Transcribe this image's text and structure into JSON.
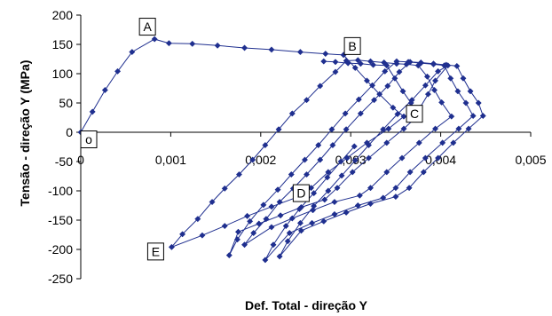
{
  "chart_data": {
    "type": "scatter",
    "title": "",
    "xlabel": "Def. Total - direção Y",
    "ylabel": "Tensão - direção Y (MPa)",
    "xlim": [
      0,
      0.005
    ],
    "ylim": [
      -250,
      200
    ],
    "x_ticks": [
      0,
      0.001,
      0.002,
      0.003,
      0.004,
      0.005
    ],
    "x_tick_labels": [
      "0",
      "0,001",
      "0,002",
      "0,003",
      "0,004",
      "0,005"
    ],
    "y_ticks": [
      200,
      150,
      100,
      50,
      0,
      -50,
      -100,
      -150,
      -200,
      -250
    ],
    "y_tick_labels": [
      "200",
      "150",
      "100",
      "50",
      "0",
      "-50",
      "-100",
      "-150",
      "-200",
      "-250"
    ],
    "grid": false,
    "legend": "none",
    "marker": "diamond",
    "series": [
      {
        "color": "#1f2f8f",
        "points": [
          [
            0,
            0
          ],
          [
            0.00013,
            35
          ],
          [
            0.00027,
            72
          ],
          [
            0.00041,
            104
          ],
          [
            0.00057,
            137
          ],
          [
            0.00082,
            159
          ],
          [
            0.00098,
            152
          ],
          [
            0.00124,
            151
          ],
          [
            0.00152,
            148
          ],
          [
            0.00182,
            144
          ],
          [
            0.00212,
            141
          ],
          [
            0.00244,
            137
          ],
          [
            0.00272,
            134
          ],
          [
            0.00292,
            132
          ],
          [
            0.00305,
            110
          ],
          [
            0.00318,
            88
          ],
          [
            0.00332,
            65
          ],
          [
            0.00347,
            42
          ],
          [
            0.00359,
            27
          ],
          [
            0.00342,
            6
          ],
          [
            0.00318,
            -18
          ],
          [
            0.00296,
            -44
          ],
          [
            0.00275,
            -68
          ],
          [
            0.00256,
            -95
          ],
          [
            0.00242,
            -110
          ],
          [
            0.00212,
            -127
          ],
          [
            0.00185,
            -143
          ],
          [
            0.0016,
            -160
          ],
          [
            0.00135,
            -176
          ],
          [
            0.00101,
            -196
          ],
          [
            0.00113,
            -174
          ],
          [
            0.0013,
            -148
          ],
          [
            0.00146,
            -119
          ],
          [
            0.0016,
            -96
          ],
          [
            0.00176,
            -72
          ],
          [
            0.00191,
            -47
          ],
          [
            0.00205,
            -22
          ],
          [
            0.0022,
            5
          ],
          [
            0.00235,
            32
          ],
          [
            0.00251,
            55
          ],
          [
            0.00266,
            79
          ],
          [
            0.00283,
            103
          ],
          [
            0.00295,
            122
          ],
          [
            0.00308,
            123
          ],
          [
            0.00322,
            121
          ],
          [
            0.00337,
            119
          ],
          [
            0.00351,
            117
          ],
          [
            0.00362,
            116
          ],
          [
            0.00375,
            114
          ],
          [
            0.00385,
            95
          ],
          [
            0.00393,
            72
          ],
          [
            0.00401,
            51
          ],
          [
            0.00412,
            27
          ],
          [
            0.00394,
            6
          ],
          [
            0.00376,
            -18
          ],
          [
            0.00357,
            -44
          ],
          [
            0.0034,
            -68
          ],
          [
            0.00322,
            -95
          ],
          [
            0.0031,
            -108
          ],
          [
            0.00282,
            -119
          ],
          [
            0.00258,
            -133
          ],
          [
            0.00235,
            -147
          ],
          [
            0.00212,
            -162
          ],
          [
            0.00182,
            -192
          ],
          [
            0.00192,
            -172
          ],
          [
            0.00206,
            -148
          ],
          [
            0.00221,
            -119
          ],
          [
            0.00236,
            -96
          ],
          [
            0.00251,
            -72
          ],
          [
            0.00266,
            -47
          ],
          [
            0.0028,
            -22
          ],
          [
            0.00295,
            5
          ],
          [
            0.00311,
            32
          ],
          [
            0.00326,
            55
          ],
          [
            0.00341,
            79
          ],
          [
            0.00354,
            103
          ],
          [
            0.00366,
            120
          ],
          [
            0.00378,
            119
          ],
          [
            0.00392,
            117
          ],
          [
            0.00406,
            115
          ],
          [
            0.00418,
            113
          ],
          [
            0.00425,
            92
          ],
          [
            0.00433,
            70
          ],
          [
            0.00442,
            50
          ],
          [
            0.00447,
            28
          ],
          [
            0.00431,
            6
          ],
          [
            0.00414,
            -18
          ],
          [
            0.00397,
            -44
          ],
          [
            0.00381,
            -68
          ],
          [
            0.00365,
            -95
          ],
          [
            0.0035,
            -110
          ],
          [
            0.00322,
            -122
          ],
          [
            0.00295,
            -137
          ],
          [
            0.0027,
            -152
          ],
          [
            0.00245,
            -168
          ],
          [
            0.00221,
            -212
          ],
          [
            0.0023,
            -186
          ],
          [
            0.00244,
            -155
          ],
          [
            0.00259,
            -126
          ],
          [
            0.00275,
            -100
          ],
          [
            0.0029,
            -74
          ],
          [
            0.00305,
            -48
          ],
          [
            0.0032,
            -22
          ],
          [
            0.00336,
            5
          ],
          [
            0.00352,
            31
          ],
          [
            0.00368,
            55
          ],
          [
            0.00383,
            80
          ],
          [
            0.00397,
            104
          ],
          [
            0.00408,
            114
          ],
          [
            0.00394,
            88
          ],
          [
            0.00386,
            65
          ],
          [
            0.00377,
            42
          ],
          [
            0.0037,
            27
          ]
        ]
      },
      {
        "color": "#1f2f8f",
        "points": [
          [
            0.0027,
            121
          ],
          [
            0.00283,
            120
          ],
          [
            0.00297,
            118
          ],
          [
            0.00311,
            117
          ],
          [
            0.00325,
            115
          ],
          [
            0.0034,
            114
          ],
          [
            0.00349,
            92
          ],
          [
            0.00358,
            70
          ],
          [
            0.00367,
            50
          ],
          [
            0.00375,
            29
          ],
          [
            0.00359,
            6
          ],
          [
            0.0034,
            -18
          ],
          [
            0.0032,
            -44
          ],
          [
            0.00302,
            -68
          ],
          [
            0.00285,
            -95
          ],
          [
            0.00271,
            -115
          ],
          [
            0.00245,
            -128
          ],
          [
            0.00222,
            -142
          ],
          [
            0.00198,
            -156
          ],
          [
            0.00175,
            -170
          ],
          [
            0.00165,
            -210
          ],
          [
            0.00174,
            -183
          ],
          [
            0.00188,
            -152
          ],
          [
            0.00203,
            -124
          ],
          [
            0.00219,
            -98
          ],
          [
            0.00234,
            -72
          ],
          [
            0.00249,
            -47
          ],
          [
            0.00264,
            -22
          ],
          [
            0.00279,
            5
          ],
          [
            0.00294,
            32
          ],
          [
            0.00309,
            56
          ],
          [
            0.00324,
            80
          ],
          [
            0.00338,
            104
          ],
          [
            0.00351,
            121
          ],
          [
            0.00364,
            120
          ],
          [
            0.00378,
            118
          ],
          [
            0.00392,
            116
          ],
          [
            0.00404,
            114
          ],
          [
            0.00411,
            92
          ],
          [
            0.00419,
            70
          ],
          [
            0.00428,
            50
          ],
          [
            0.00436,
            28
          ],
          [
            0.0042,
            6
          ],
          [
            0.00402,
            -18
          ],
          [
            0.00383,
            -44
          ],
          [
            0.00366,
            -68
          ],
          [
            0.0035,
            -95
          ],
          [
            0.00336,
            -112
          ],
          [
            0.00308,
            -125
          ],
          [
            0.00282,
            -140
          ],
          [
            0.00257,
            -155
          ],
          [
            0.00232,
            -172
          ],
          [
            0.00205,
            -218
          ],
          [
            0.00214,
            -192
          ],
          [
            0.00228,
            -160
          ],
          [
            0.00243,
            -131
          ],
          [
            0.00259,
            -104
          ],
          [
            0.00274,
            -77
          ],
          [
            0.00289,
            -50
          ],
          [
            0.00304,
            -24
          ]
        ]
      }
    ],
    "annotations": [
      {
        "label": "A",
        "x": 0.00082,
        "y": 159
      },
      {
        "label": "B",
        "x": 0.00292,
        "y": 132
      },
      {
        "label": "C",
        "x": 0.00359,
        "y": 27
      },
      {
        "label": "D",
        "x": 0.00242,
        "y": -110
      },
      {
        "label": "E",
        "x": 0.00101,
        "y": -196
      },
      {
        "label": "o",
        "x": 0,
        "y": 0
      }
    ]
  }
}
